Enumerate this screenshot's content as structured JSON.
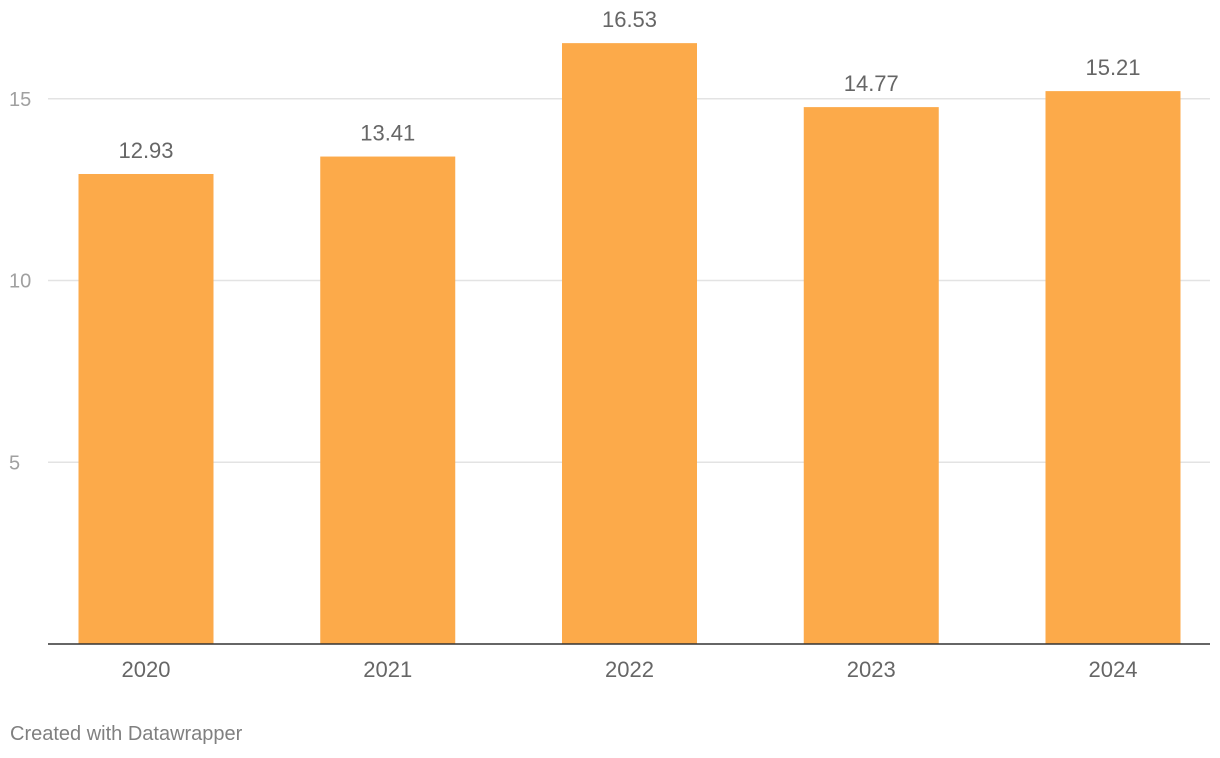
{
  "chart_data": {
    "type": "bar",
    "categories": [
      "2020",
      "2021",
      "2022",
      "2023",
      "2024"
    ],
    "values": [
      12.93,
      13.41,
      16.53,
      14.77,
      15.21
    ],
    "value_labels": [
      "12.93",
      "13.41",
      "16.53",
      "14.77",
      "15.21"
    ],
    "ylim": [
      0,
      17.5
    ],
    "yticks": [
      5,
      10,
      15
    ],
    "ytick_labels": [
      "5",
      "10",
      "15"
    ],
    "grid": true,
    "bar_color": "#FCAA4A",
    "title": "",
    "xlabel": "",
    "ylabel": ""
  },
  "footer": {
    "credit": "Created with Datawrapper"
  },
  "colors": {
    "grid": "#e3e3e3",
    "baseline": "#333333",
    "tick_text": "#a0a0a0",
    "category_text": "#666666",
    "value_text": "#666666"
  }
}
